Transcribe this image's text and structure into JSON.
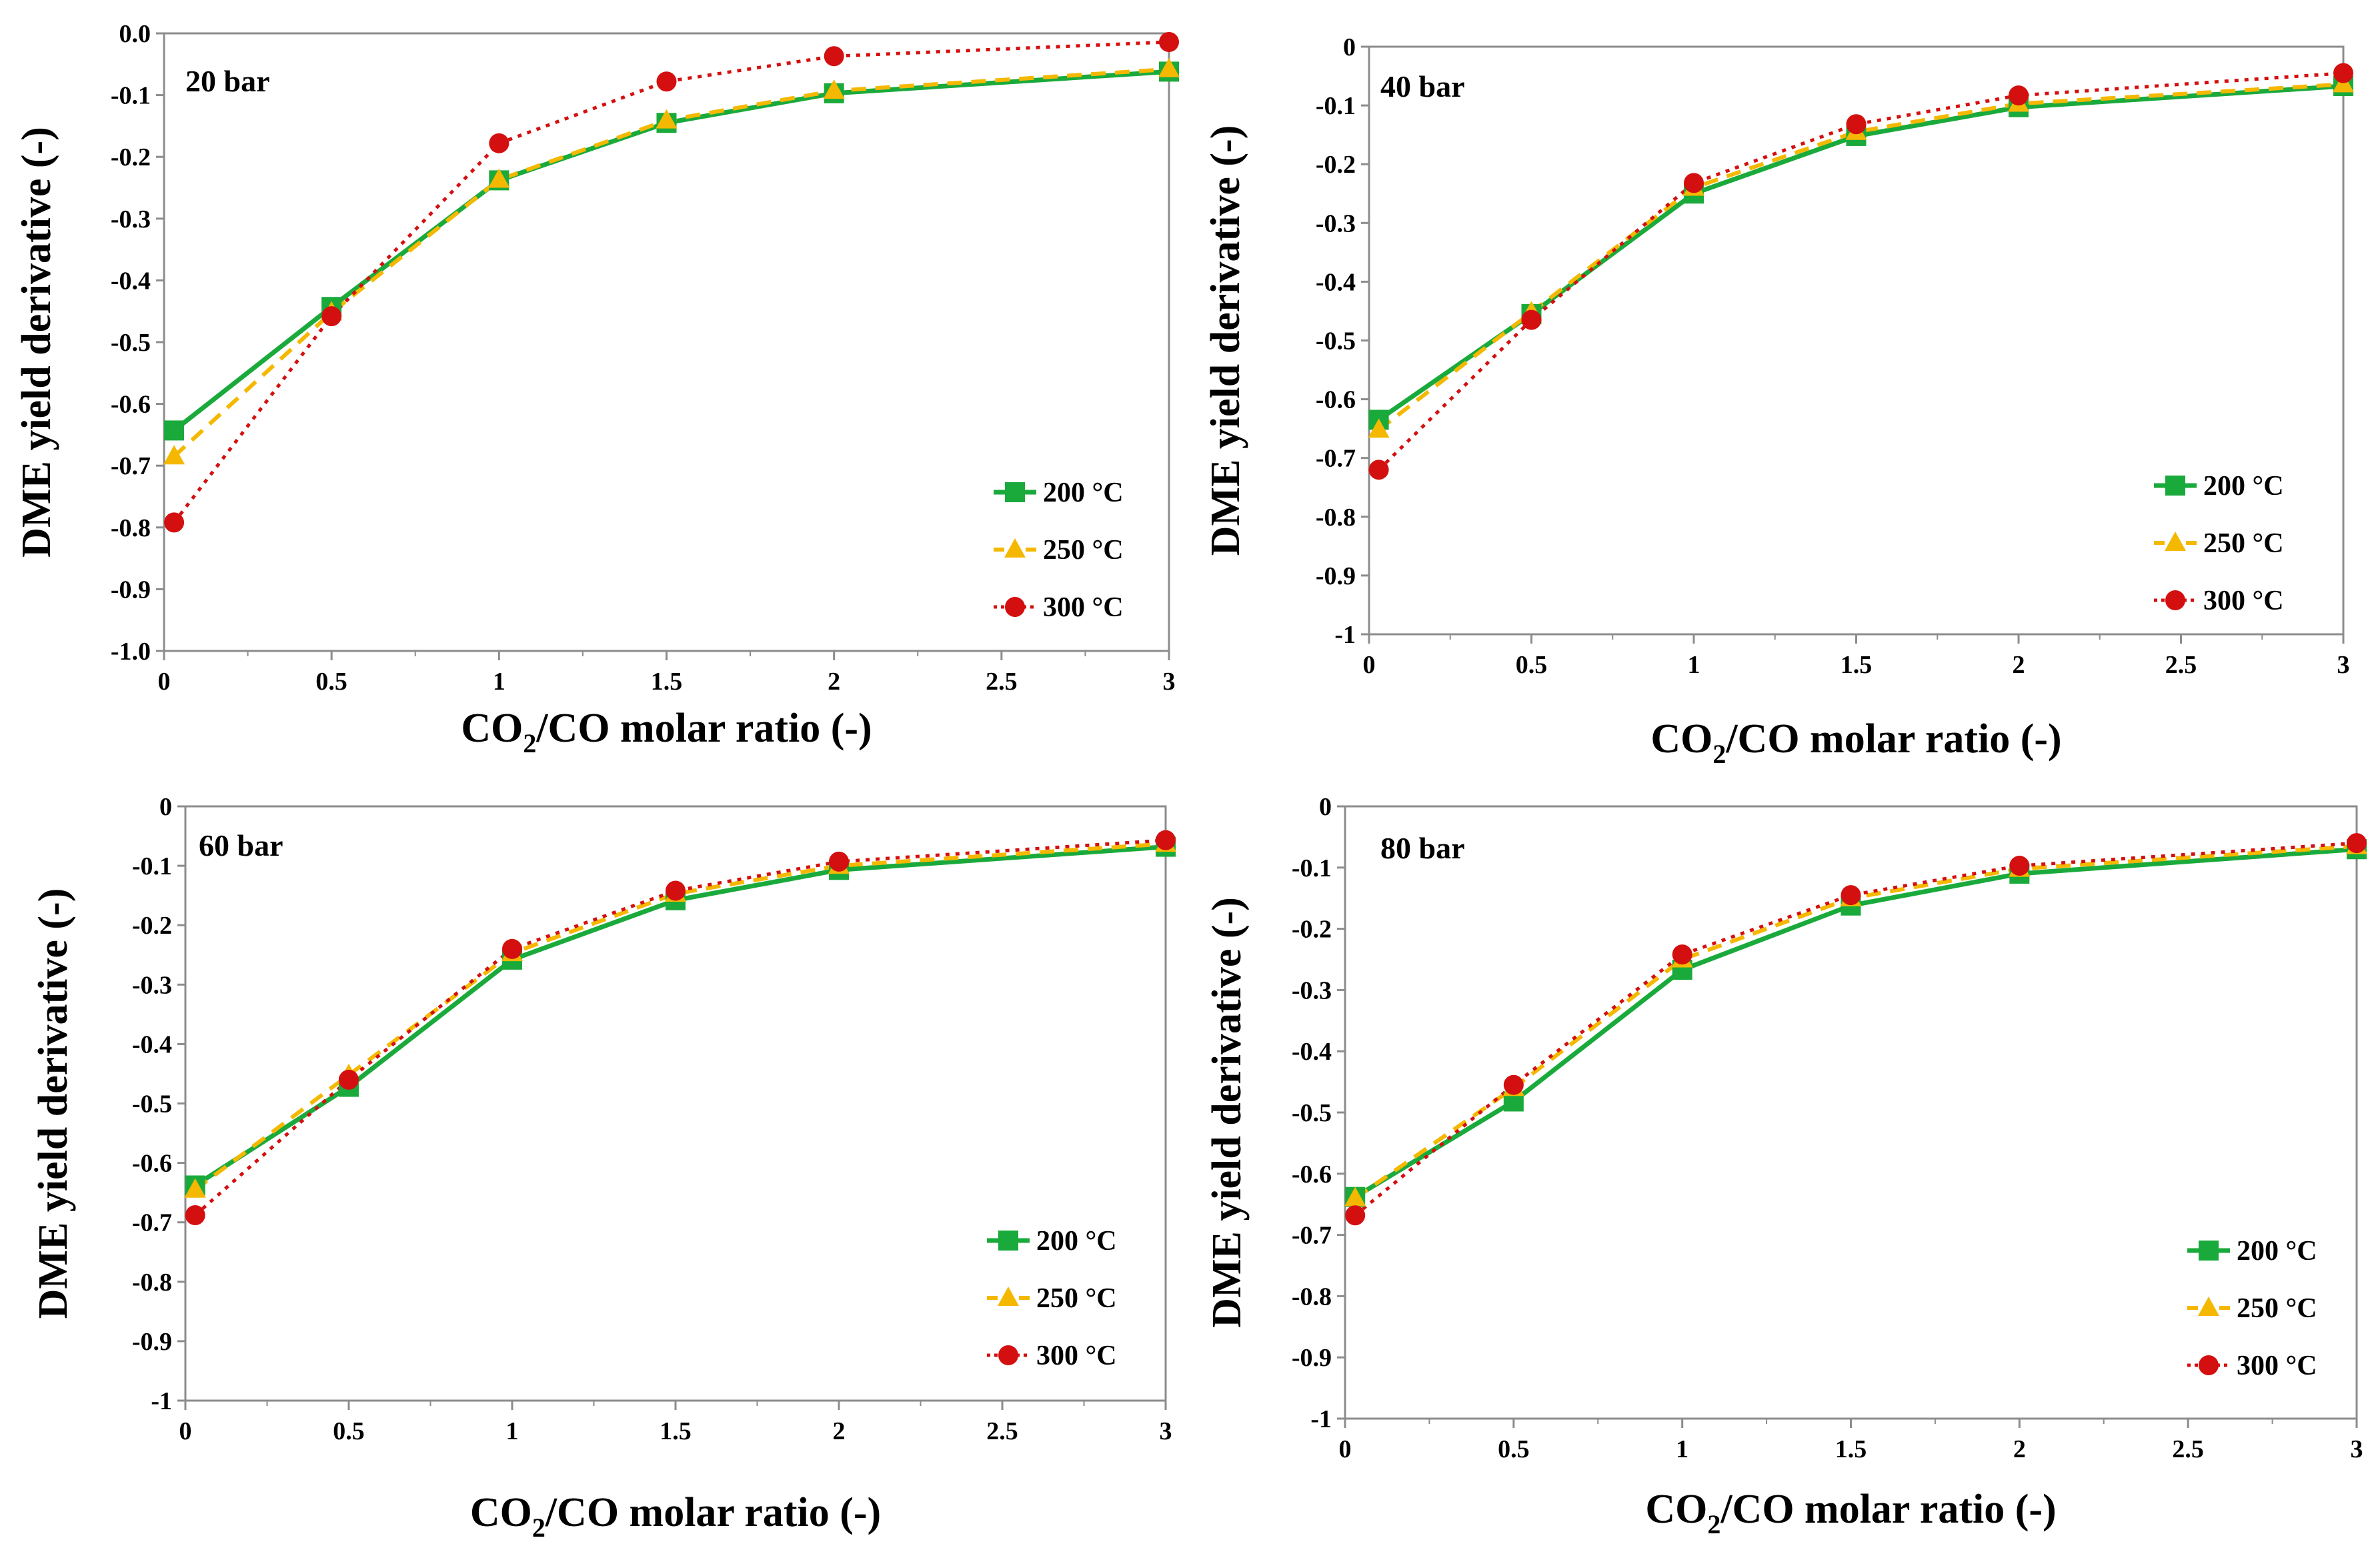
{
  "colors": {
    "s200": "#1aaa3c",
    "s250": "#f5b800",
    "s300": "#d40f0f",
    "axis": "#8c8c8c"
  },
  "legend": {
    "s200": "200 °C",
    "s250": "250 °C",
    "s300": "300 °C"
  },
  "chart_data": [
    {
      "type": "line",
      "title": "20 bar",
      "xlabel": "CO2/CO molar ratio (-)",
      "ylabel": "DME yield derivative (-)",
      "xlim": [
        0,
        3
      ],
      "ylim": [
        -1.0,
        0.0
      ],
      "xticks": [
        "0",
        "0.5",
        "1",
        "1.5",
        "2",
        "2.5",
        "3"
      ],
      "yticks": [
        "0.0",
        "-0.1",
        "-0.2",
        "-0.3",
        "-0.4",
        "-0.5",
        "-0.6",
        "-0.7",
        "-0.8",
        "-0.9",
        "-1.0"
      ],
      "x": [
        0.03,
        0.5,
        1,
        1.5,
        2,
        3
      ],
      "series": [
        {
          "name": "200 °C",
          "values": [
            -0.643,
            -0.443,
            -0.238,
            -0.145,
            -0.097,
            -0.062
          ]
        },
        {
          "name": "250 °C",
          "values": [
            -0.685,
            -0.452,
            -0.237,
            -0.141,
            -0.093,
            -0.058
          ]
        },
        {
          "name": "300 °C",
          "values": [
            -0.792,
            -0.458,
            -0.178,
            -0.078,
            -0.037,
            -0.014
          ]
        }
      ]
    },
    {
      "type": "line",
      "title": "40 bar",
      "xlabel": "CO2/CO molar ratio (-)",
      "ylabel": "DME yield derivative (-)",
      "xlim": [
        0,
        3
      ],
      "ylim": [
        -1,
        0
      ],
      "xticks": [
        "0",
        "0.5",
        "1",
        "1.5",
        "2",
        "2.5",
        "3"
      ],
      "yticks": [
        "0",
        "-0.1",
        "-0.2",
        "-0.3",
        "-0.4",
        "-0.5",
        "-0.6",
        "-0.7",
        "-0.8",
        "-0.9",
        "-1"
      ],
      "x": [
        0.03,
        0.5,
        1,
        1.5,
        2,
        3
      ],
      "series": [
        {
          "name": "200 °C",
          "values": [
            -0.635,
            -0.455,
            -0.25,
            -0.152,
            -0.103,
            -0.067
          ]
        },
        {
          "name": "250 °C",
          "values": [
            -0.652,
            -0.452,
            -0.24,
            -0.145,
            -0.097,
            -0.064
          ]
        },
        {
          "name": "300 °C",
          "values": [
            -0.72,
            -0.465,
            -0.232,
            -0.132,
            -0.083,
            -0.045
          ]
        }
      ]
    },
    {
      "type": "line",
      "title": "60 bar",
      "xlabel": "CO2/CO molar ratio (-)",
      "ylabel": "DME yield derivative (-)",
      "xlim": [
        0,
        3
      ],
      "ylim": [
        -1,
        0
      ],
      "xticks": [
        "0",
        "0.5",
        "1",
        "1.5",
        "2",
        "2.5",
        "3"
      ],
      "yticks": [
        "0",
        "-0.1",
        "-0.2",
        "-0.3",
        "-0.4",
        "-0.5",
        "-0.6",
        "-0.7",
        "-0.8",
        "-0.9",
        "-1"
      ],
      "x": [
        0.03,
        0.5,
        1,
        1.5,
        2,
        3
      ],
      "series": [
        {
          "name": "200 °C",
          "values": [
            -0.638,
            -0.472,
            -0.258,
            -0.158,
            -0.107,
            -0.068
          ]
        },
        {
          "name": "250 °C",
          "values": [
            -0.645,
            -0.452,
            -0.247,
            -0.147,
            -0.1,
            -0.063
          ]
        },
        {
          "name": "300 °C",
          "values": [
            -0.688,
            -0.46,
            -0.24,
            -0.142,
            -0.093,
            -0.057
          ]
        }
      ]
    },
    {
      "type": "line",
      "title": "80 bar",
      "xlabel": "CO2/CO molar ratio (-)",
      "ylabel": "DME yield derivative (-)",
      "xlim": [
        0,
        3
      ],
      "ylim": [
        -1,
        0
      ],
      "xticks": [
        "0",
        "0.5",
        "1",
        "1.5",
        "2",
        "2.5",
        "3"
      ],
      "yticks": [
        "0",
        "-0.1",
        "-0.2",
        "-0.3",
        "-0.4",
        "-0.5",
        "-0.6",
        "-0.7",
        "-0.8",
        "-0.9",
        "-1"
      ],
      "x": [
        0.03,
        0.5,
        1,
        1.5,
        2,
        3
      ],
      "series": [
        {
          "name": "200 °C",
          "values": [
            -0.638,
            -0.482,
            -0.267,
            -0.162,
            -0.11,
            -0.07
          ]
        },
        {
          "name": "250 °C",
          "values": [
            -0.64,
            -0.46,
            -0.25,
            -0.15,
            -0.102,
            -0.065
          ]
        },
        {
          "name": "300 °C",
          "values": [
            -0.668,
            -0.455,
            -0.242,
            -0.145,
            -0.097,
            -0.06
          ]
        }
      ]
    }
  ]
}
